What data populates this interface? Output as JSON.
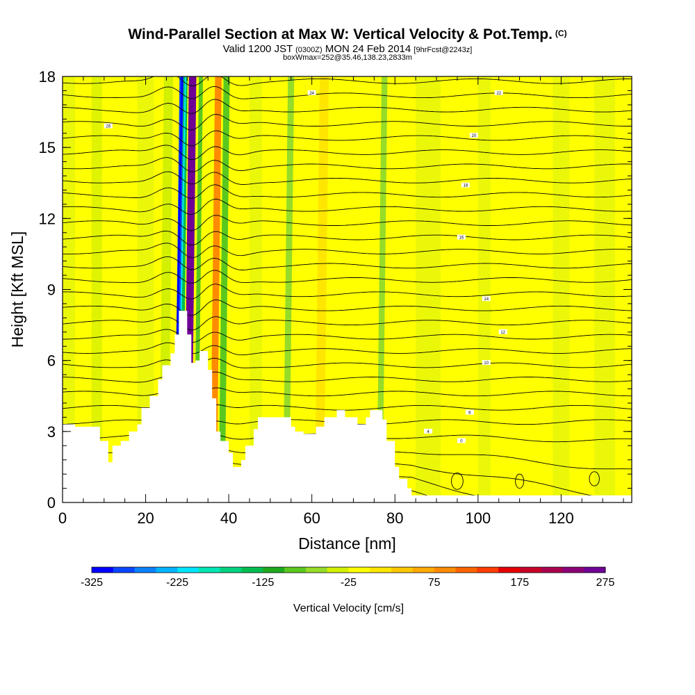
{
  "chart_data": {
    "type": "heatmap",
    "title": "Wind-Parallel Section at Max W: Vertical Velocity & Pot.Temp.",
    "title_mark": "(C)",
    "subtitle_parts": {
      "valid": "Valid 1200 JST",
      "utc": "(0300Z)",
      "date": "MON 24 Feb 2014",
      "fcst": "[9hrFcst@2243z]"
    },
    "subtitle2": "boxWmax=252@35.46,138.23,2833m",
    "xlabel": "Distance [nm]",
    "ylabel": "Height [Kft MSL]",
    "xlim": [
      0,
      137
    ],
    "ylim": [
      0,
      18
    ],
    "x_ticks": [
      "0",
      "20",
      "40",
      "60",
      "80",
      "100",
      "120"
    ],
    "y_ticks": [
      "0",
      "3",
      "6",
      "9",
      "12",
      "15",
      "18"
    ],
    "colorbar": {
      "label": "Vertical Velocity [cm/s]",
      "ticks": [
        "-325",
        "-225",
        "-125",
        "-25",
        "75",
        "175",
        "275"
      ],
      "colors": [
        "#0000ff",
        "#0a46ff",
        "#0a82ff",
        "#00b4ff",
        "#00e6ff",
        "#00e6b4",
        "#00d282",
        "#00be50",
        "#1eaa1e",
        "#5ac81e",
        "#96dc28",
        "#d2f000",
        "#ffff00",
        "#ffe600",
        "#ffc800",
        "#ffaa00",
        "#ff8c00",
        "#ff6400",
        "#ff3c00",
        "#e60000",
        "#c80028",
        "#aa0050",
        "#8c0078",
        "#6e0096"
      ]
    },
    "terrain_kft": [
      [
        0,
        3.3
      ],
      [
        3,
        3.2
      ],
      [
        6,
        3.2
      ],
      [
        9,
        2.6
      ],
      [
        11,
        1.7
      ],
      [
        12,
        2.4
      ],
      [
        14,
        2.6
      ],
      [
        16,
        3.0
      ],
      [
        18,
        3.3
      ],
      [
        19,
        4.0
      ],
      [
        21,
        4.5
      ],
      [
        23,
        5.2
      ],
      [
        24,
        5.8
      ],
      [
        26,
        6.3
      ],
      [
        27,
        7.1
      ],
      [
        28,
        8.1
      ],
      [
        30,
        7.1
      ],
      [
        31,
        5.9
      ],
      [
        32,
        6.0
      ],
      [
        33,
        6.4
      ],
      [
        35,
        5.6
      ],
      [
        36,
        4.4
      ],
      [
        37,
        3.0
      ],
      [
        38,
        2.6
      ],
      [
        40,
        2.1
      ],
      [
        41,
        1.5
      ],
      [
        43,
        1.8
      ],
      [
        44,
        2.4
      ],
      [
        46,
        3.1
      ],
      [
        47,
        3.6
      ],
      [
        50,
        3.6
      ],
      [
        53,
        3.6
      ],
      [
        55,
        3.2
      ],
      [
        56,
        3.0
      ],
      [
        58,
        2.9
      ],
      [
        60,
        2.9
      ],
      [
        61,
        3.2
      ],
      [
        63,
        3.6
      ],
      [
        65,
        3.6
      ],
      [
        66,
        3.9
      ],
      [
        68,
        3.6
      ],
      [
        70,
        3.6
      ],
      [
        71,
        3.3
      ],
      [
        73,
        3.6
      ],
      [
        74,
        3.9
      ],
      [
        76,
        3.9
      ],
      [
        77,
        3.5
      ],
      [
        78,
        2.6
      ],
      [
        80,
        1.5
      ],
      [
        81,
        1.0
      ],
      [
        83,
        0.6
      ],
      [
        84,
        0.3
      ],
      [
        137,
        0.3
      ]
    ],
    "w_bands": [
      {
        "x": 25.5,
        "w": 2.2,
        "value": -50
      },
      {
        "x": 28.8,
        "w": 1.3,
        "value": -300
      },
      {
        "x": 29.6,
        "w": 1.0,
        "value": -150
      },
      {
        "x": 31.3,
        "w": 1.8,
        "value": 250
      },
      {
        "x": 33.3,
        "w": 1.0,
        "value": -80
      },
      {
        "x": 37.5,
        "w": 1.6,
        "value": 80
      },
      {
        "x": 39.5,
        "w": 1.5,
        "value": -90
      },
      {
        "x": 55.0,
        "w": 1.5,
        "value": -70
      },
      {
        "x": 63.0,
        "w": 2.2,
        "value": 20
      },
      {
        "x": 77.5,
        "w": 1.4,
        "value": -75
      }
    ],
    "isentrope_labels": [
      "0",
      "4",
      "8",
      "10",
      "12",
      "14",
      "16",
      "18",
      "20",
      "22",
      "24",
      "26"
    ]
  }
}
